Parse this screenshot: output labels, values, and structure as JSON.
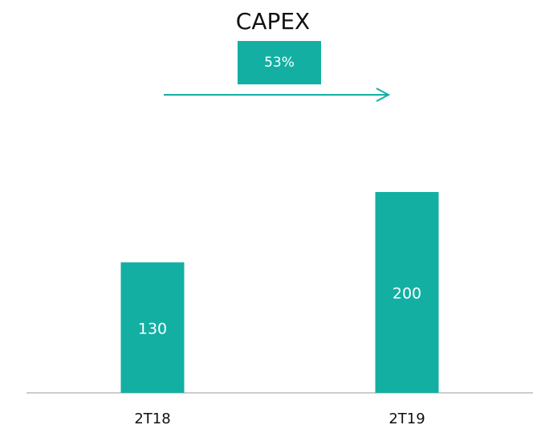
{
  "chart_data": {
    "type": "bar",
    "title": "CAPEX",
    "annotation": "53%",
    "categories": [
      "2T18",
      "2T19"
    ],
    "values": [
      130,
      200
    ],
    "color": "#13afa3"
  }
}
